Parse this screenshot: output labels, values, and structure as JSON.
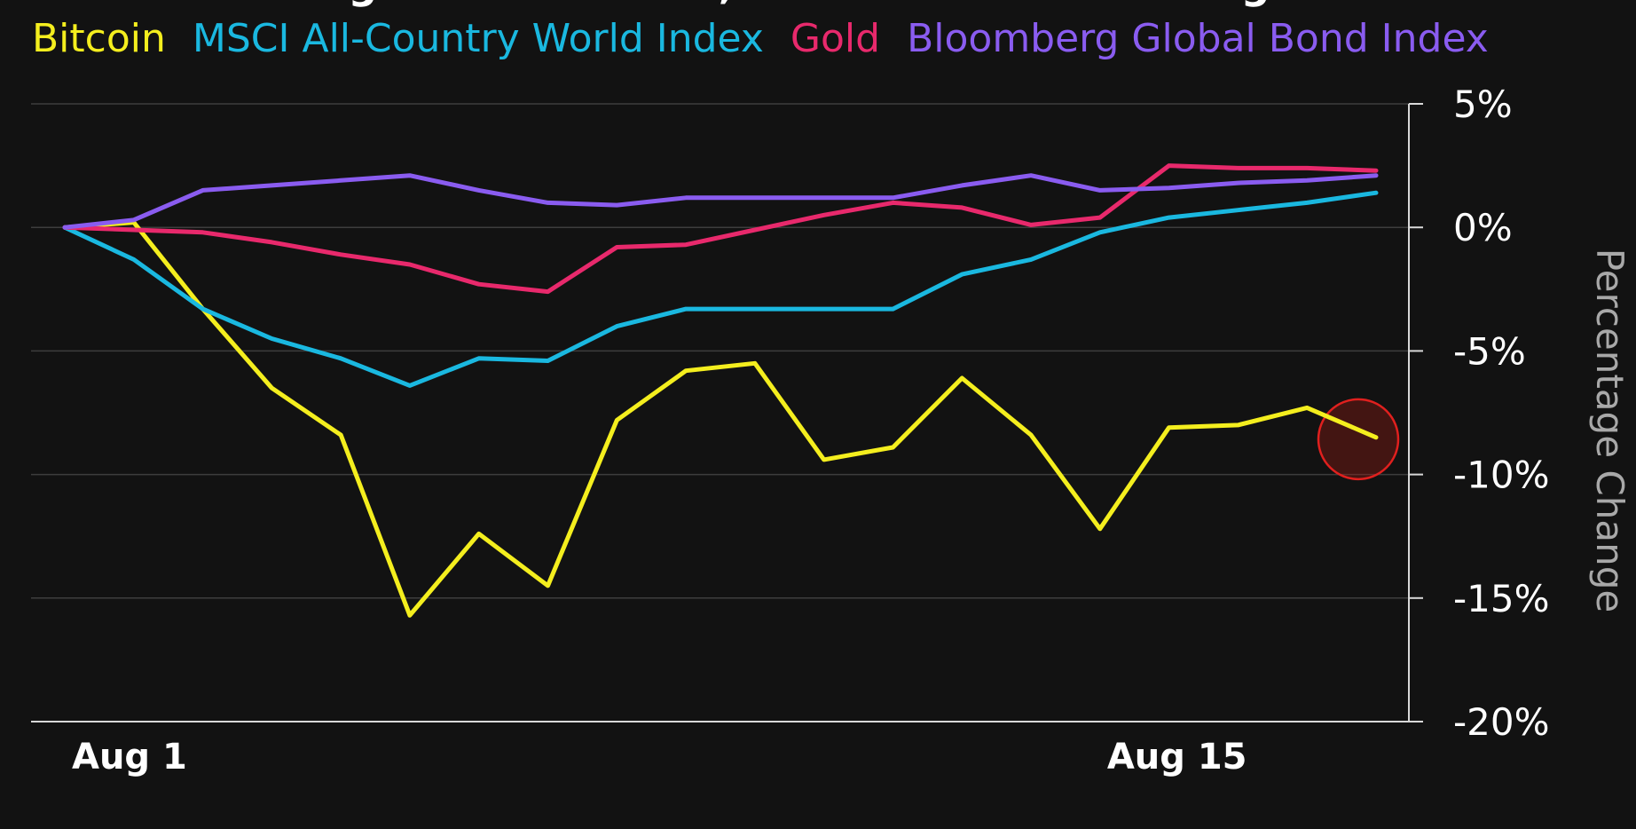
{
  "chart_data": {
    "type": "line",
    "title": "Bitcoin Trailing Behind Stocks, Gold and Bonds in August",
    "xlabel": "",
    "ylabel": "Percentage Change",
    "x": [
      0,
      1,
      2,
      3,
      4,
      5,
      6,
      7,
      8,
      9,
      10,
      11,
      12,
      13,
      14,
      15,
      16,
      17,
      18,
      19
    ],
    "x_ticks": [
      {
        "x": 0,
        "label": "Aug 1"
      },
      {
        "x": 15,
        "label": "Aug 15"
      }
    ],
    "y_ticks": [
      {
        "value": 5,
        "label": "5%"
      },
      {
        "value": 0,
        "label": "0%"
      },
      {
        "value": -5,
        "label": "-5%"
      },
      {
        "value": -10,
        "label": "-10%"
      },
      {
        "value": -15,
        "label": "-15%"
      },
      {
        "value": -20,
        "label": "-20%"
      }
    ],
    "ylim": [
      -20,
      5
    ],
    "grid": true,
    "legend_position": "top-left",
    "series": [
      {
        "name": "Bitcoin",
        "color": "#f4ee1e",
        "values": [
          0,
          0.2,
          -3.3,
          -6.5,
          -8.4,
          -15.7,
          -12.4,
          -14.5,
          -7.8,
          -5.8,
          -5.5,
          -9.4,
          -8.9,
          -6.1,
          -8.4,
          -12.2,
          -8.1,
          -8.0,
          -7.3,
          -8.5
        ]
      },
      {
        "name": "MSCI All-Country World Index",
        "color": "#1ab8e0",
        "values": [
          0,
          -1.3,
          -3.3,
          -4.5,
          -5.3,
          -6.4,
          -5.3,
          -5.4,
          -4.0,
          -3.3,
          -3.3,
          -3.3,
          -3.3,
          -1.9,
          -1.3,
          -0.2,
          0.4,
          0.7,
          1.0,
          1.4
        ]
      },
      {
        "name": "Gold",
        "color": "#e8296c",
        "values": [
          0,
          -0.1,
          -0.2,
          -0.6,
          -1.1,
          -1.5,
          -2.3,
          -2.6,
          -0.8,
          -0.7,
          -0.1,
          0.5,
          1.0,
          0.8,
          0.1,
          0.4,
          2.5,
          2.4,
          2.4,
          2.3
        ]
      },
      {
        "name": "Bloomberg Global Bond Index",
        "color": "#8a5cf0",
        "values": [
          0,
          0.3,
          1.5,
          1.7,
          1.9,
          2.1,
          1.5,
          1.0,
          0.9,
          1.2,
          1.2,
          1.2,
          1.2,
          1.7,
          2.1,
          1.5,
          1.6,
          1.8,
          1.9,
          2.1
        ]
      }
    ],
    "annotations": [
      {
        "type": "circle",
        "series": "Bitcoin",
        "x": 19,
        "y": -8.5,
        "color": "#e0201e"
      }
    ],
    "colors": {
      "background": "#121212",
      "gridline": "#3d3d3d",
      "axis": "#d8d8d8",
      "text": "#ffffff",
      "ylabel": "#a8a8a8"
    }
  }
}
